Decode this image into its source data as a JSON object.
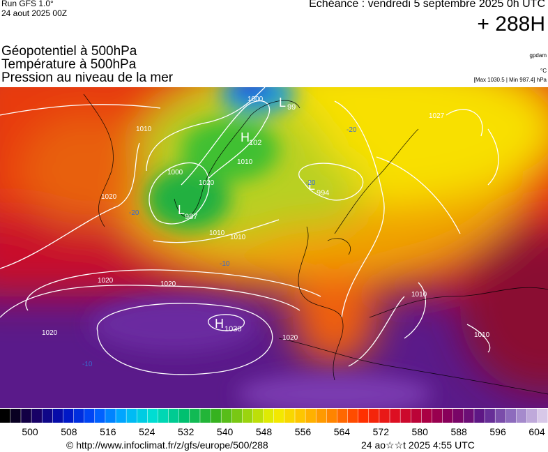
{
  "header": {
    "run": "Run GFS 1.0°",
    "date": "24 aout 2025 00Z",
    "echeance": "Echéance : vendredi 5 septembre 2025 0h UTC",
    "lead": "+ 288H"
  },
  "titles": [
    "Géopotentiel à 500hPa",
    "Température à 500hPa",
    "Pression au niveau de la mer"
  ],
  "units": {
    "geopotential": "gpdam",
    "temperature": "°C",
    "pressure": "[Max 1030.5 | Min 987.4] hPa"
  },
  "map_labels": [
    "L",
    "987",
    "L",
    "994",
    "H",
    "1030",
    "H",
    "102",
    "L",
    "99",
    "1020",
    "1020",
    "1020",
    "1010",
    "1010",
    "1000",
    "1000",
    "1010",
    "1020",
    "1010",
    "1027",
    "1020",
    "1010",
    "1020",
    "1010",
    "-20",
    "-20",
    "-10",
    "-10",
    "-20"
  ],
  "colorbar": {
    "labels": [
      500,
      508,
      516,
      524,
      532,
      540,
      548,
      556,
      564,
      572,
      580,
      588,
      596,
      604
    ]
  },
  "footer": {
    "source": "© http://www.infoclimat.fr/z/gfs/europe/500/288",
    "generated": "24 ao☆☆t 2025  4:55 UTC"
  }
}
